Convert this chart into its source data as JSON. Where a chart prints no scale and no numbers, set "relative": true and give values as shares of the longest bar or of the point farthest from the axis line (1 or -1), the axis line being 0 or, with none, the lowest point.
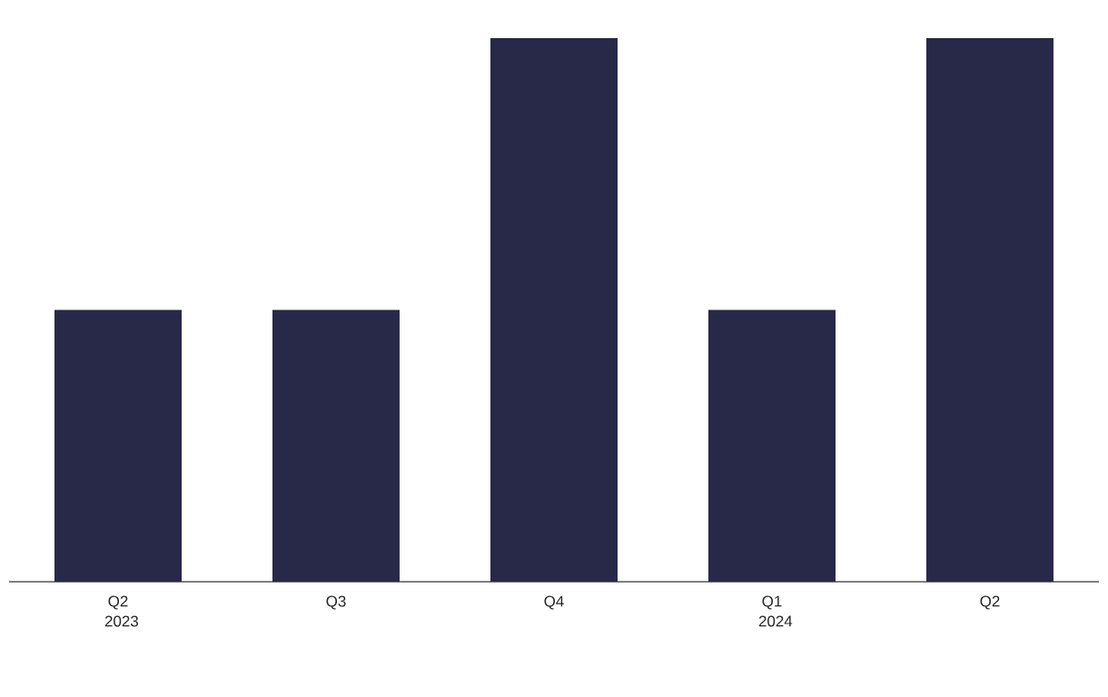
{
  "chart_data": {
    "type": "bar",
    "relative": true,
    "categories": [
      "Q2 2023",
      "Q3",
      "Q4",
      "Q1 2024",
      "Q2"
    ],
    "values": [
      0.5,
      0.5,
      1,
      0.5,
      1
    ],
    "color": "#282848"
  }
}
